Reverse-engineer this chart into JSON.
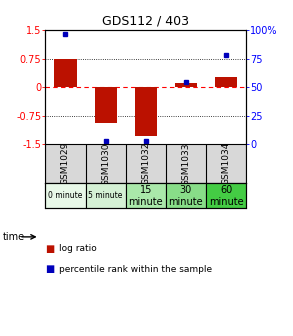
{
  "title": "GDS112 / 403",
  "samples": [
    "GSM1029",
    "GSM1030",
    "GSM1032",
    "GSM1033",
    "GSM1034"
  ],
  "log_ratios": [
    0.75,
    -0.93,
    -1.28,
    0.1,
    0.27
  ],
  "percentile_ranks": [
    97,
    3,
    3,
    55,
    78
  ],
  "time_labels": [
    "0 minute",
    "5 minute",
    "15\nminute",
    "30\nminute",
    "60\nminute"
  ],
  "time_colors": [
    "#e8f8e8",
    "#d4f0d4",
    "#aae8aa",
    "#88dd88",
    "#44cc44"
  ],
  "sample_bg": "#d8d8d8",
  "bar_color": "#bb1100",
  "point_color": "#0000bb",
  "ylim_left": [
    -1.5,
    1.5
  ],
  "ylim_right": [
    0,
    100
  ],
  "yticks_left": [
    -1.5,
    -0.75,
    0,
    0.75,
    1.5
  ],
  "ytick_labels_left": [
    "-1.5",
    "-0.75",
    "0",
    "0.75",
    "1.5"
  ],
  "yticks_right": [
    0,
    25,
    50,
    75,
    100
  ],
  "ytick_labels_right": [
    "0",
    "25",
    "50",
    "75",
    "100%"
  ],
  "dotted_lines": [
    -0.75,
    0.75
  ],
  "bar_width": 0.55,
  "legend_items": [
    "log ratio",
    "percentile rank within the sample"
  ],
  "legend_colors": [
    "#bb1100",
    "#0000bb"
  ],
  "bg_color": "#ffffff"
}
